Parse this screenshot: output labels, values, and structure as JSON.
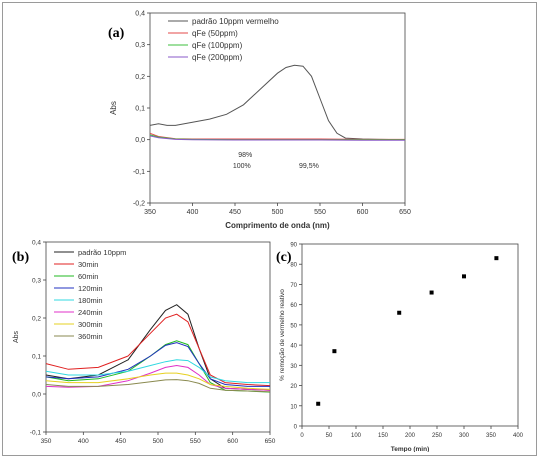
{
  "panels": {
    "a": {
      "tag": "(a)"
    },
    "b": {
      "tag": "(b)"
    },
    "c": {
      "tag": "(c)"
    }
  },
  "chart_data": [
    {
      "id": "a",
      "type": "line",
      "xlabel": "Comprimento de onda (nm)",
      "ylabel": "Abs",
      "xlim": [
        350,
        650
      ],
      "ylim": [
        -0.2,
        0.4
      ],
      "xticks": [
        350,
        400,
        450,
        500,
        550,
        600,
        650
      ],
      "yticks": [
        -0.2,
        -0.1,
        0.0,
        0.1,
        0.2,
        0.3,
        0.4
      ],
      "ytick_labels": [
        "-0,2",
        "-0,1",
        "0,0",
        "0,1",
        "0,2",
        "0,3",
        "0,4"
      ],
      "grid": false,
      "legend_position": "top-right",
      "annotations": [
        {
          "text": "98%",
          "x": 462,
          "y": -0.055
        },
        {
          "text": "100%",
          "x": 458,
          "y": -0.09
        },
        {
          "text": "99,5%",
          "x": 537,
          "y": -0.09
        }
      ],
      "series": [
        {
          "name": "padrão 10ppm vermelho",
          "color": "#555555",
          "x": [
            350,
            360,
            370,
            380,
            400,
            420,
            440,
            460,
            480,
            500,
            510,
            520,
            530,
            540,
            550,
            560,
            570,
            580,
            600,
            620,
            650
          ],
          "y": [
            0.045,
            0.05,
            0.045,
            0.045,
            0.055,
            0.065,
            0.08,
            0.11,
            0.16,
            0.21,
            0.228,
            0.235,
            0.232,
            0.2,
            0.13,
            0.06,
            0.02,
            0.005,
            0.002,
            0.001,
            0.0
          ]
        },
        {
          "name": "qFe (50ppm)",
          "color": "#e34a4a",
          "x": [
            350,
            360,
            380,
            400,
            450,
            500,
            550,
            600,
            650
          ],
          "y": [
            0.02,
            0.01,
            0.003,
            0.002,
            0.002,
            0.002,
            0.002,
            0.001,
            0.001
          ]
        },
        {
          "name": "qFe (100ppm)",
          "color": "#3cbf3c",
          "x": [
            350,
            360,
            380,
            400,
            450,
            500,
            550,
            600,
            650
          ],
          "y": [
            0.015,
            0.008,
            0.002,
            0.001,
            0.0,
            0.0,
            0.0,
            0.0,
            0.0
          ]
        },
        {
          "name": "qFe (200ppm)",
          "color": "#8a5ac8",
          "x": [
            350,
            360,
            380,
            400,
            450,
            500,
            550,
            600,
            650
          ],
          "y": [
            0.012,
            0.006,
            0.001,
            0.0,
            -0.001,
            -0.001,
            -0.001,
            -0.002,
            -0.002
          ]
        }
      ]
    },
    {
      "id": "b",
      "type": "line",
      "xlabel": "Comprimento de onda (nm)",
      "ylabel": "Abs",
      "xlim": [
        350,
        650
      ],
      "ylim": [
        -0.1,
        0.4
      ],
      "xticks": [
        350,
        400,
        450,
        500,
        550,
        600,
        650
      ],
      "yticks": [
        -0.1,
        0.0,
        0.1,
        0.2,
        0.3,
        0.4
      ],
      "ytick_labels": [
        "-0,1",
        "0,0",
        "0,1",
        "0,2",
        "0,3",
        "0,4"
      ],
      "grid": false,
      "legend_position": "top-left",
      "series": [
        {
          "name": "padrão 10ppm",
          "color": "#222222",
          "x": [
            350,
            380,
            420,
            460,
            490,
            510,
            525,
            540,
            555,
            570,
            590,
            620,
            650
          ],
          "y": [
            0.05,
            0.04,
            0.05,
            0.09,
            0.17,
            0.22,
            0.235,
            0.21,
            0.12,
            0.04,
            0.015,
            0.012,
            0.01
          ]
        },
        {
          "name": "30min",
          "color": "#e02020",
          "x": [
            350,
            380,
            420,
            460,
            490,
            510,
            525,
            540,
            555,
            570,
            590,
            620,
            650
          ],
          "y": [
            0.08,
            0.065,
            0.07,
            0.1,
            0.16,
            0.2,
            0.21,
            0.19,
            0.12,
            0.05,
            0.03,
            0.025,
            0.022
          ]
        },
        {
          "name": "60min",
          "color": "#22b922",
          "x": [
            350,
            380,
            420,
            460,
            490,
            510,
            525,
            540,
            555,
            570,
            590,
            620,
            650
          ],
          "y": [
            0.045,
            0.035,
            0.04,
            0.06,
            0.1,
            0.13,
            0.14,
            0.13,
            0.08,
            0.03,
            0.01,
            0.008,
            0.005
          ]
        },
        {
          "name": "120min",
          "color": "#2030c0",
          "x": [
            350,
            380,
            420,
            460,
            490,
            510,
            525,
            540,
            555,
            570,
            590,
            620,
            650
          ],
          "y": [
            0.045,
            0.04,
            0.045,
            0.065,
            0.1,
            0.128,
            0.135,
            0.125,
            0.08,
            0.04,
            0.025,
            0.02,
            0.02
          ]
        },
        {
          "name": "180min",
          "color": "#30d8e0",
          "x": [
            350,
            380,
            420,
            460,
            490,
            510,
            525,
            540,
            555,
            570,
            590,
            620,
            650
          ],
          "y": [
            0.06,
            0.05,
            0.05,
            0.06,
            0.075,
            0.085,
            0.09,
            0.088,
            0.07,
            0.045,
            0.035,
            0.03,
            0.03
          ]
        },
        {
          "name": "240min",
          "color": "#e030c8",
          "x": [
            350,
            380,
            420,
            460,
            490,
            510,
            525,
            540,
            555,
            570,
            590,
            620,
            650
          ],
          "y": [
            0.02,
            0.018,
            0.02,
            0.035,
            0.055,
            0.07,
            0.075,
            0.07,
            0.05,
            0.025,
            0.015,
            0.012,
            0.01
          ]
        },
        {
          "name": "300min",
          "color": "#e6d020",
          "x": [
            350,
            380,
            420,
            460,
            490,
            510,
            525,
            540,
            555,
            570,
            590,
            620,
            650
          ],
          "y": [
            0.035,
            0.03,
            0.03,
            0.04,
            0.05,
            0.055,
            0.055,
            0.05,
            0.04,
            0.025,
            0.02,
            0.015,
            0.012
          ]
        },
        {
          "name": "360min",
          "color": "#8a8a50",
          "x": [
            350,
            380,
            420,
            460,
            490,
            510,
            525,
            540,
            555,
            570,
            590,
            620,
            650
          ],
          "y": [
            0.025,
            0.02,
            0.02,
            0.025,
            0.032,
            0.037,
            0.038,
            0.035,
            0.028,
            0.015,
            0.01,
            0.008,
            0.006
          ]
        }
      ]
    },
    {
      "id": "c",
      "type": "scatter",
      "xlabel": "Tempo (min)",
      "ylabel": "% remoção de vermelho reativo",
      "xlim": [
        0,
        400
      ],
      "ylim": [
        0,
        90
      ],
      "xticks": [
        0,
        50,
        100,
        150,
        200,
        250,
        300,
        350,
        400
      ],
      "yticks": [
        0,
        10,
        20,
        30,
        40,
        50,
        60,
        70,
        80,
        90
      ],
      "grid": false,
      "series": [
        {
          "color": "#000000",
          "x": [
            30,
            60,
            180,
            240,
            300,
            360
          ],
          "y": [
            11,
            37,
            56,
            66,
            74,
            83
          ]
        }
      ]
    }
  ]
}
